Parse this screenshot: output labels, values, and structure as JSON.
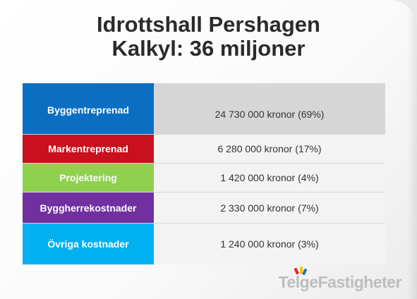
{
  "title": {
    "line1": "Idrottshall Pershagen",
    "line2": "Kalkyl: 36 miljoner"
  },
  "colors": {
    "byggentreprenad": "#0a6fc2",
    "markentreprenad": "#c8101e",
    "projektering": "#8fd14f",
    "byggherrekostnader": "#7030a0",
    "ovriga": "#00b0f0"
  },
  "rows": [
    {
      "label": "Byggentreprenad",
      "value": "24 730 000 kronor (69%)"
    },
    {
      "label": "Markentreprenad",
      "value": "6 280 000 kronor (17%)"
    },
    {
      "label": "Projektering",
      "value": "1 420 000 kronor (4%)"
    },
    {
      "label": "Byggherrekostnader",
      "value": "2 330 000 kronor (7%)"
    },
    {
      "label": "Övriga kostnader",
      "value": "1 240 000 kronor (3%)"
    }
  ],
  "logo": {
    "text": "TelgeFastigheter",
    "icon": "telge-logo-mark-icon"
  }
}
